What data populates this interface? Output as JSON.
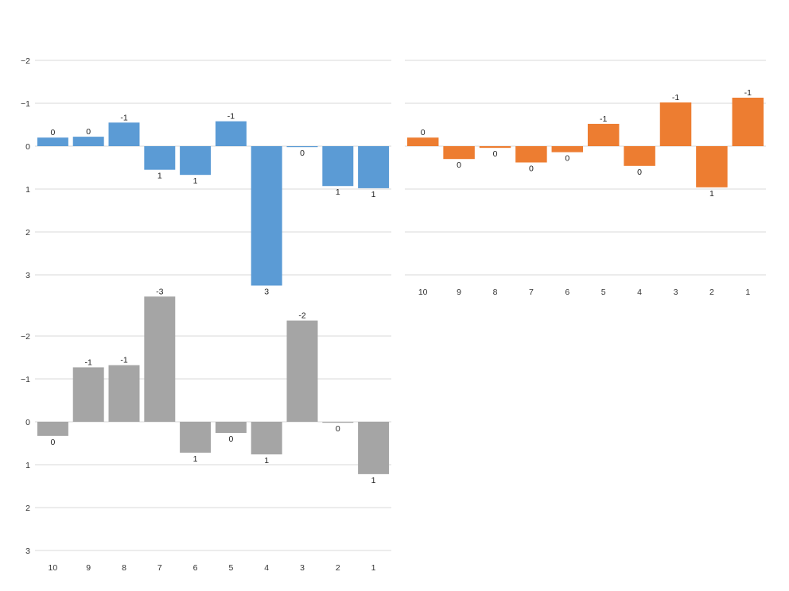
{
  "chart_data": [
    {
      "type": "bar",
      "series_color": "#5B9BD5",
      "ylim": [
        3.3,
        -2.2
      ],
      "yticks": [
        "−2",
        "−1",
        "0",
        "1",
        "2",
        "3"
      ],
      "ytick_values": [
        -2,
        -1,
        0,
        1,
        2,
        3
      ],
      "grid": true,
      "xticks_shown": false,
      "categories": [
        "10",
        "9",
        "8",
        "7",
        "6",
        "5",
        "4",
        "3",
        "2",
        "1"
      ],
      "values": [
        -0.2,
        -0.22,
        -0.55,
        0.55,
        0.67,
        -0.58,
        3.25,
        0.02,
        0.93,
        0.98
      ],
      "data_labels": [
        "0",
        "0",
        "-1",
        "1",
        "1",
        "-1",
        "3",
        "0",
        "1",
        "1"
      ]
    },
    {
      "type": "bar",
      "series_color": "#ED7D31",
      "ylim": [
        3.3,
        -2.2
      ],
      "yticks": [
        "−2",
        "−1",
        "0",
        "1",
        "2",
        "3"
      ],
      "ytick_values": [
        -2,
        -1,
        0,
        1,
        2,
        3
      ],
      "grid": true,
      "xticks_shown": true,
      "categories": [
        "10",
        "9",
        "8",
        "7",
        "6",
        "5",
        "4",
        "3",
        "2",
        "1"
      ],
      "values": [
        -0.2,
        0.3,
        0.04,
        0.38,
        0.14,
        -0.52,
        0.46,
        -1.02,
        0.96,
        -1.13
      ],
      "data_labels": [
        "0",
        "0",
        "0",
        "0",
        "0",
        "-1",
        "0",
        "-1",
        "1",
        "-1"
      ]
    },
    {
      "type": "bar",
      "series_color": "#A5A5A5",
      "ylim": [
        3.3,
        -2.2
      ],
      "yticks": [
        "−2",
        "−1",
        "0",
        "1",
        "2",
        "3"
      ],
      "ytick_values": [
        -2,
        -1,
        0,
        1,
        2,
        3
      ],
      "grid": true,
      "xticks_shown": true,
      "categories": [
        "10",
        "9",
        "8",
        "7",
        "6",
        "5",
        "4",
        "3",
        "2",
        "1"
      ],
      "values": [
        0.33,
        -1.27,
        -1.32,
        -2.92,
        0.72,
        0.26,
        0.76,
        -2.36,
        0.01,
        1.22
      ],
      "data_labels": [
        "0",
        "-1",
        "-1",
        "-3",
        "1",
        "0",
        "1",
        "-2",
        "0",
        "1"
      ]
    }
  ]
}
